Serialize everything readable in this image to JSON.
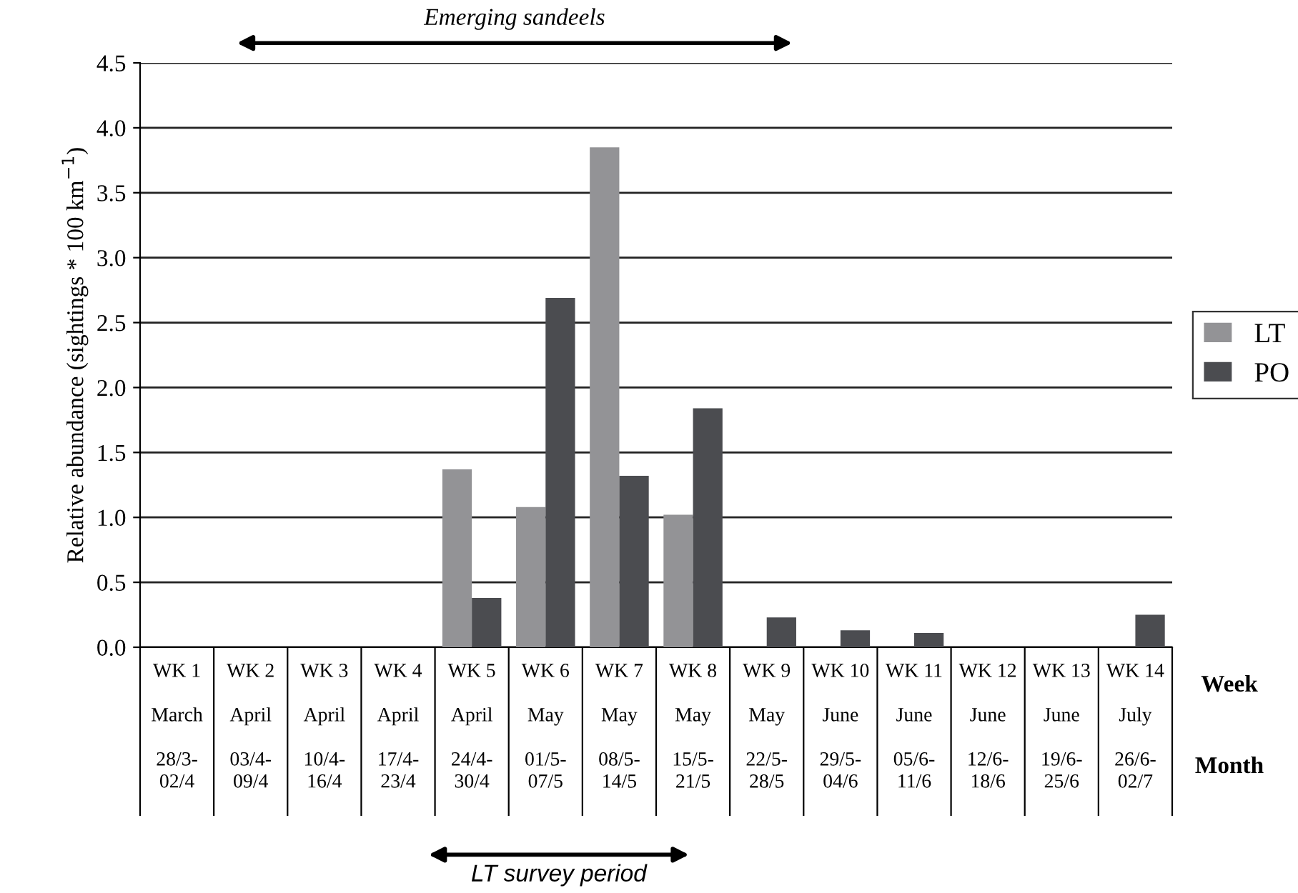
{
  "chart_data": {
    "type": "bar",
    "ylabel": "Relative abundance (sightings * 100 km$^{−1}$)",
    "categories": [
      "WK 1\n\nMarch\n\n28/3-\n02/4",
      "WK 2\n\nApril\n\n03/4-\n09/4",
      "WK 3\n\nApril\n\n10/4-\n16/4",
      "WK 4\n\nApril\n\n17/4-\n23/4",
      "WK 5\n\nApril\n\n24/4-\n30/4",
      "WK 6\n\nMay\n\n01/5-\n07/5",
      "WK 7\n\nMay\n\n08/5-\n14/5",
      "WK 8\n\nMay\n\n15/5-\n21/5",
      "WK 9\n\nMay\n\n22/5-\n28/5",
      "WK 10\n\nJune\n\n29/5-\n04/6",
      "WK 11\n\nJune\n\n05/6-\n11/6",
      "WK 12\n\nJune\n\n12/6-\n18/6",
      "WK 13\n\nJune\n\n19/6-\n25/6",
      "WK 14\n\nJuly\n\n26/6-\n02/7"
    ],
    "series": [
      {
        "name": "LT",
        "color": "#939396",
        "values": [
          0,
          0,
          0,
          0,
          1.37,
          1.08,
          3.85,
          1.02,
          0,
          0,
          0,
          0,
          0,
          0
        ]
      },
      {
        "name": "PO",
        "color": "#4b4c50",
        "values": [
          0,
          0,
          0,
          0,
          0.38,
          2.69,
          1.32,
          1.84,
          0.23,
          0.13,
          0.11,
          0,
          0,
          0.25
        ]
      }
    ],
    "ylim": [
      0,
      4.5
    ],
    "yticks": [
      {
        "value": 0,
        "label": "0.0"
      },
      {
        "value": 0.5,
        "label": "0.5"
      },
      {
        "value": 1,
        "label": "1.0"
      },
      {
        "value": 1.5,
        "label": "1.5"
      },
      {
        "value": 2,
        "label": "2.0"
      },
      {
        "value": 2.5,
        "label": "2.5"
      },
      {
        "value": 3,
        "label": "3.0"
      },
      {
        "value": 3.5,
        "label": "3.5"
      },
      {
        "value": 4,
        "label": "4.0"
      },
      {
        "value": 4.5,
        "label": "4.5"
      }
    ],
    "grid": "y",
    "legend": "right",
    "annotations": [
      "Emerging sandeels",
      "LT survey period",
      "Week",
      "Month"
    ]
  }
}
